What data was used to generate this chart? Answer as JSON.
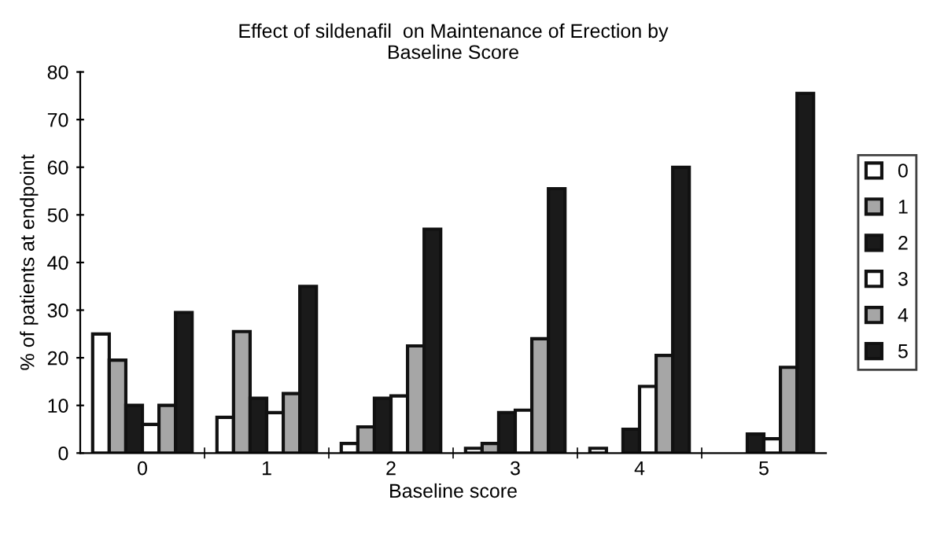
{
  "chart_data": {
    "type": "bar",
    "title": "Effect of sildenafil  on Maintenance of Erection by\nBaseline Score",
    "xlabel": "Baseline score",
    "ylabel": "% of patients at endpoint",
    "categories": [
      "0",
      "1",
      "2",
      "3",
      "4",
      "5"
    ],
    "series": [
      {
        "name": "0",
        "color": "#ffffff",
        "values": [
          25,
          7.5,
          2,
          1,
          1,
          null
        ]
      },
      {
        "name": "1",
        "color": "#a6a6a6",
        "values": [
          19.5,
          25.5,
          5.5,
          2,
          null,
          null
        ]
      },
      {
        "name": "2",
        "color": "#1a1a1a",
        "values": [
          10,
          11.5,
          11.5,
          8.5,
          5,
          4
        ]
      },
      {
        "name": "3",
        "color": "#ffffff",
        "values": [
          6,
          8.5,
          12,
          9,
          14,
          3
        ]
      },
      {
        "name": "4",
        "color": "#a6a6a6",
        "values": [
          10,
          12.5,
          22.5,
          24,
          20.5,
          18
        ]
      },
      {
        "name": "5",
        "color": "#1a1a1a",
        "values": [
          29.5,
          35,
          47,
          55.5,
          60,
          75.5
        ]
      }
    ],
    "ylim": [
      0,
      80
    ],
    "yticks": [
      0,
      10,
      20,
      30,
      40,
      50,
      60,
      70,
      80
    ],
    "legend": "right",
    "grid": false
  }
}
